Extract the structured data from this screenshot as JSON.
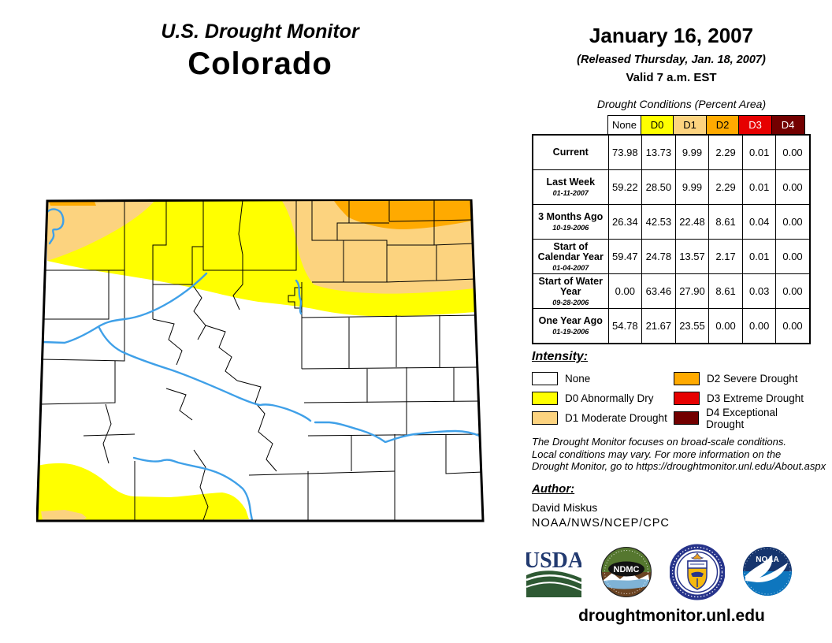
{
  "header": {
    "title": "U.S. Drought Monitor",
    "state": "Colorado",
    "date": "January 16, 2007",
    "released": "(Released Thursday, Jan. 18, 2007)",
    "valid": "Valid 7 a.m. EST"
  },
  "table": {
    "caption": "Drought Conditions (Percent Area)",
    "columns": [
      "None",
      "D0",
      "D1",
      "D2",
      "D3",
      "D4"
    ],
    "column_colors": [
      "#FFFFFF",
      "#FFFF00",
      "#FCD37F",
      "#FFAA00",
      "#E60000",
      "#730000"
    ],
    "column_text_colors": [
      "#000000",
      "#000000",
      "#000000",
      "#000000",
      "#FFFFFF",
      "#FFFFFF"
    ],
    "rows": [
      {
        "label": "Current",
        "date": "",
        "values": [
          "73.98",
          "13.73",
          "9.99",
          "2.29",
          "0.01",
          "0.00"
        ]
      },
      {
        "label": "Last Week",
        "date": "01-11-2007",
        "values": [
          "59.22",
          "28.50",
          "9.99",
          "2.29",
          "0.01",
          "0.00"
        ]
      },
      {
        "label": "3 Months Ago",
        "date": "10-19-2006",
        "values": [
          "26.34",
          "42.53",
          "22.48",
          "8.61",
          "0.04",
          "0.00"
        ]
      },
      {
        "label": "Start of Calendar Year",
        "date": "01-04-2007",
        "values": [
          "59.47",
          "24.78",
          "13.57",
          "2.17",
          "0.01",
          "0.00"
        ]
      },
      {
        "label": "Start of Water Year",
        "date": "09-28-2006",
        "values": [
          "0.00",
          "63.46",
          "27.90",
          "8.61",
          "0.03",
          "0.00"
        ]
      },
      {
        "label": "One Year Ago",
        "date": "01-19-2006",
        "values": [
          "54.78",
          "21.67",
          "23.55",
          "0.00",
          "0.00",
          "0.00"
        ]
      }
    ]
  },
  "legend": {
    "title": "Intensity:",
    "items": [
      {
        "label": "None",
        "color": "#FFFFFF"
      },
      {
        "label": "D0 Abnormally Dry",
        "color": "#FFFF00"
      },
      {
        "label": "D1 Moderate Drought",
        "color": "#FCD37F"
      },
      {
        "label": "D2 Severe Drought",
        "color": "#FFAA00"
      },
      {
        "label": "D3 Extreme Drought",
        "color": "#E60000"
      },
      {
        "label": "D4 Exceptional Drought",
        "color": "#730000"
      }
    ]
  },
  "map": {
    "region": "Colorado",
    "river_color": "#3FA0E8",
    "d0_color": "#FFFF00",
    "d1_color": "#FCD37F",
    "d2_color": "#FFAA00"
  },
  "disclaimer": {
    "line1": "The Drought Monitor focuses on broad-scale conditions.",
    "line2": "Local conditions may vary. For more information on the",
    "line3": "Drought Monitor, go to https://droughtmonitor.unl.edu/About.aspx"
  },
  "author": {
    "title": "Author:",
    "name": "David Miskus",
    "org": "NOAA/NWS/NCEP/CPC"
  },
  "logos": {
    "usda": {
      "label": "USDA"
    },
    "ndmc": {
      "label": "NDMC"
    },
    "commerce": {
      "label": ""
    },
    "noaa": {
      "label": "NOAA"
    }
  },
  "footer": {
    "url": "droughtmonitor.unl.edu"
  },
  "chart_data": {
    "type": "table",
    "title": "Drought Conditions (Percent Area)",
    "categories": [
      "None",
      "D0",
      "D1",
      "D2",
      "D3",
      "D4"
    ],
    "series": [
      {
        "name": "Current",
        "values": [
          73.98,
          13.73,
          9.99,
          2.29,
          0.01,
          0.0
        ]
      },
      {
        "name": "Last Week 01-11-2007",
        "values": [
          59.22,
          28.5,
          9.99,
          2.29,
          0.01,
          0.0
        ]
      },
      {
        "name": "3 Months Ago 10-19-2006",
        "values": [
          26.34,
          42.53,
          22.48,
          8.61,
          0.04,
          0.0
        ]
      },
      {
        "name": "Start of Calendar Year 01-04-2007",
        "values": [
          59.47,
          24.78,
          13.57,
          2.17,
          0.01,
          0.0
        ]
      },
      {
        "name": "Start of Water Year 09-28-2006",
        "values": [
          0.0,
          63.46,
          27.9,
          8.61,
          0.03,
          0.0
        ]
      },
      {
        "name": "One Year Ago 01-19-2006",
        "values": [
          54.78,
          21.67,
          23.55,
          0.0,
          0.0,
          0.0
        ]
      }
    ]
  }
}
